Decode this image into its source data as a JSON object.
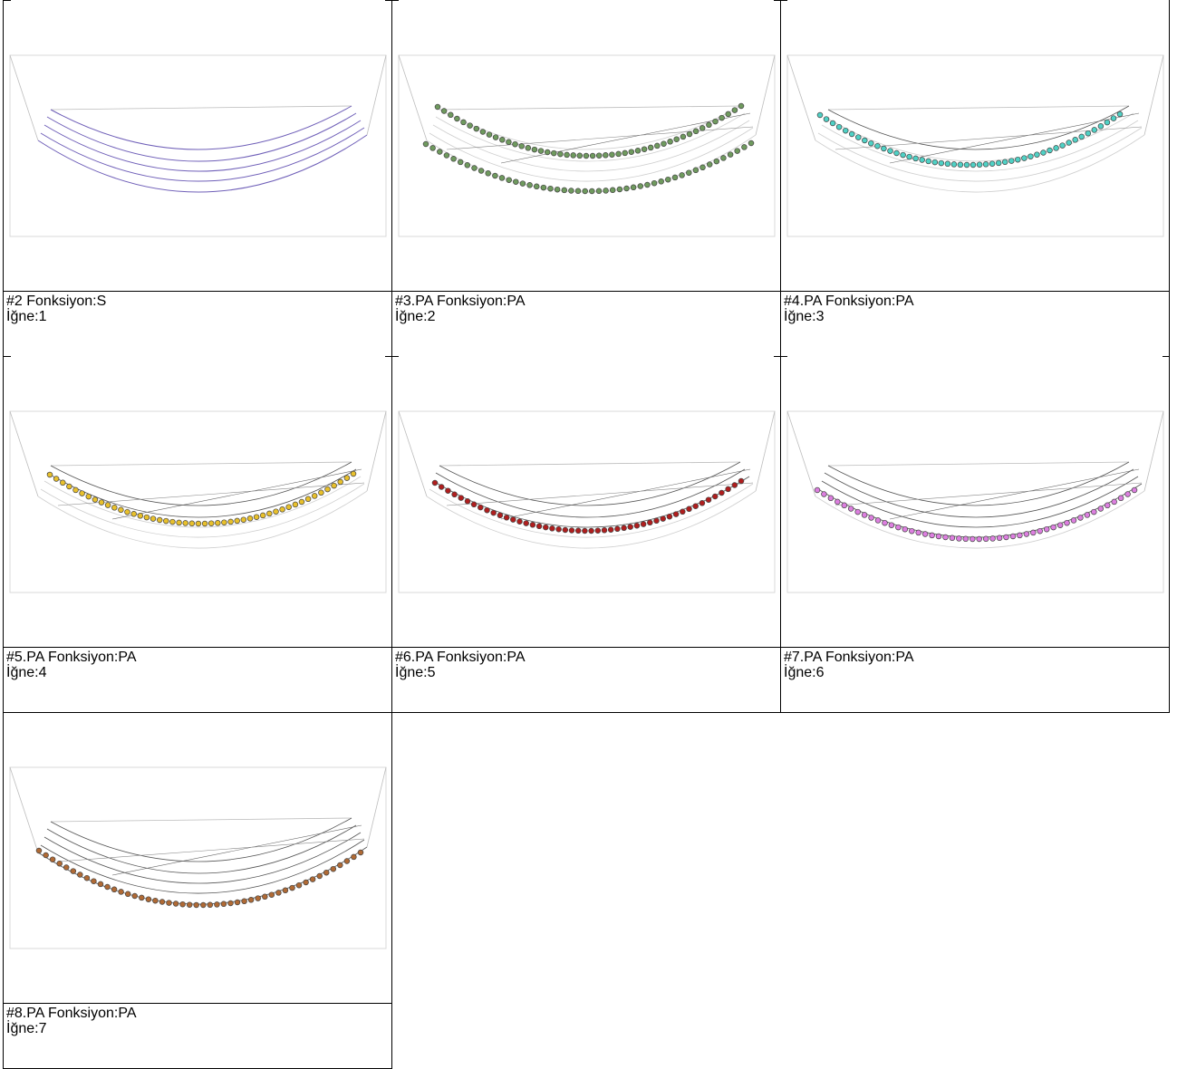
{
  "cells": [
    {
      "title": "#2 Fonksiyon:S",
      "needle": "İğne:1",
      "color": "#6f5fb8",
      "row": -1
    },
    {
      "title": "#3.PA Fonksiyon:PA",
      "needle": "İğne:2",
      "color": "#6f9a5e",
      "row": 0
    },
    {
      "title": "#4.PA Fonksiyon:PA",
      "needle": "İğne:3",
      "color": "#4fd1c5",
      "row": 1
    },
    {
      "title": "#5.PA Fonksiyon:PA",
      "needle": "İğne:4",
      "color": "#e8c02c",
      "row": 2
    },
    {
      "title": "#6.PA Fonksiyon:PA",
      "needle": "İğne:5",
      "color": "#b01e1e",
      "row": 3
    },
    {
      "title": "#7.PA Fonksiyon:PA",
      "needle": "İğne:6",
      "color": "#dd7fe0",
      "row": 4
    },
    {
      "title": "#8.PA Fonksiyon:PA",
      "needle": "İğne:7",
      "color": "#b06a35",
      "row": 5
    }
  ]
}
